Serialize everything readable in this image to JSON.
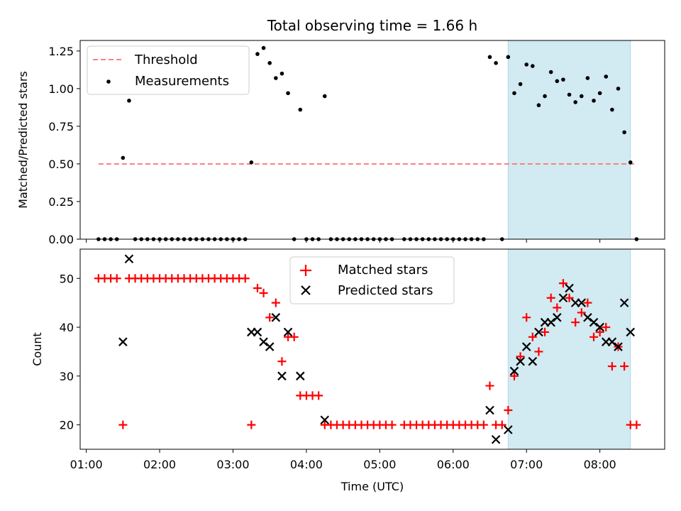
{
  "chart_data": [
    {
      "type": "scatter",
      "title": "Total observing time = 1.66 h",
      "xlabel": "",
      "ylabel": "Matched/Predicted stars",
      "ylim": [
        0,
        1.32
      ],
      "yticks": [
        0,
        0.25,
        0.5,
        0.75,
        1.0,
        1.25
      ],
      "ytick_labels": [
        "0.00",
        "0.25",
        "0.50",
        "0.75",
        "1.00",
        "1.25"
      ],
      "xlim": [
        "00:55",
        "08:53"
      ],
      "shaded_span": [
        "06:45",
        "08:25"
      ],
      "shaded_color": "#add8e6",
      "legend_position": "upper left",
      "threshold": {
        "name": "Threshold",
        "value": 0.5,
        "x_range": [
          "01:10",
          "08:30"
        ],
        "color": "#ff7f7f",
        "style": "dashed"
      },
      "series": [
        {
          "name": "Measurements",
          "marker": "dot",
          "color": "#000000",
          "points": [
            [
              "01:10",
              0
            ],
            [
              "01:15",
              0
            ],
            [
              "01:20",
              0
            ],
            [
              "01:25",
              0
            ],
            [
              "01:30",
              0.54
            ],
            [
              "01:35",
              0.92
            ],
            [
              "01:40",
              0
            ],
            [
              "01:45",
              0
            ],
            [
              "01:50",
              0
            ],
            [
              "01:55",
              0
            ],
            [
              "02:00",
              0
            ],
            [
              "02:05",
              0
            ],
            [
              "02:10",
              0
            ],
            [
              "02:15",
              0
            ],
            [
              "02:20",
              0
            ],
            [
              "02:25",
              0
            ],
            [
              "02:30",
              0
            ],
            [
              "02:35",
              0
            ],
            [
              "02:40",
              0
            ],
            [
              "02:45",
              0
            ],
            [
              "02:50",
              0
            ],
            [
              "02:55",
              0
            ],
            [
              "03:00",
              0
            ],
            [
              "03:05",
              0
            ],
            [
              "03:10",
              0
            ],
            [
              "03:15",
              0.51
            ],
            [
              "03:20",
              1.23
            ],
            [
              "03:25",
              1.27
            ],
            [
              "03:30",
              1.17
            ],
            [
              "03:35",
              1.07
            ],
            [
              "03:40",
              1.1
            ],
            [
              "03:45",
              0.97
            ],
            [
              "03:50",
              0
            ],
            [
              "03:55",
              0.86
            ],
            [
              "04:00",
              0
            ],
            [
              "04:05",
              0
            ],
            [
              "04:10",
              0
            ],
            [
              "04:15",
              0.95
            ],
            [
              "04:20",
              0
            ],
            [
              "04:25",
              0
            ],
            [
              "04:30",
              0
            ],
            [
              "04:35",
              0
            ],
            [
              "04:40",
              0
            ],
            [
              "04:45",
              0
            ],
            [
              "04:50",
              0
            ],
            [
              "04:55",
              0
            ],
            [
              "05:00",
              0
            ],
            [
              "05:05",
              0
            ],
            [
              "05:10",
              0
            ],
            [
              "05:20",
              0
            ],
            [
              "05:25",
              0
            ],
            [
              "05:30",
              0
            ],
            [
              "05:35",
              0
            ],
            [
              "05:40",
              0
            ],
            [
              "05:45",
              0
            ],
            [
              "05:50",
              0
            ],
            [
              "05:55",
              0
            ],
            [
              "06:00",
              0
            ],
            [
              "06:05",
              0
            ],
            [
              "06:10",
              0
            ],
            [
              "06:15",
              0
            ],
            [
              "06:20",
              0
            ],
            [
              "06:25",
              0
            ],
            [
              "06:30",
              1.21
            ],
            [
              "06:35",
              1.17
            ],
            [
              "06:40",
              0
            ],
            [
              "06:45",
              1.21
            ],
            [
              "06:50",
              0.97
            ],
            [
              "06:55",
              1.03
            ],
            [
              "07:00",
              1.16
            ],
            [
              "07:05",
              1.15
            ],
            [
              "07:10",
              0.89
            ],
            [
              "07:15",
              0.95
            ],
            [
              "07:20",
              1.11
            ],
            [
              "07:25",
              1.05
            ],
            [
              "07:30",
              1.06
            ],
            [
              "07:35",
              0.96
            ],
            [
              "07:40",
              0.91
            ],
            [
              "07:45",
              0.95
            ],
            [
              "07:50",
              1.07
            ],
            [
              "07:55",
              0.92
            ],
            [
              "08:00",
              0.97
            ],
            [
              "08:05",
              1.08
            ],
            [
              "08:10",
              0.86
            ],
            [
              "08:15",
              1.0
            ],
            [
              "08:20",
              0.71
            ],
            [
              "08:25",
              0.51
            ],
            [
              "08:30",
              0
            ]
          ]
        }
      ]
    },
    {
      "type": "scatter",
      "title": "",
      "xlabel": "Time (UTC)",
      "ylabel": "Count",
      "ylim": [
        15,
        56
      ],
      "yticks": [
        20,
        30,
        40,
        50
      ],
      "ytick_labels": [
        "20",
        "30",
        "40",
        "50"
      ],
      "xlim": [
        "00:55",
        "08:53"
      ],
      "xticks": [
        "01:00",
        "02:00",
        "03:00",
        "04:00",
        "05:00",
        "06:00",
        "07:00",
        "08:00"
      ],
      "shaded_span": [
        "06:45",
        "08:25"
      ],
      "shaded_color": "#add8e6",
      "legend_position": "upper center",
      "series": [
        {
          "name": "Matched stars",
          "marker": "plus",
          "color": "#ff0000",
          "points": [
            [
              "01:10",
              50
            ],
            [
              "01:15",
              50
            ],
            [
              "01:20",
              50
            ],
            [
              "01:25",
              50
            ],
            [
              "01:30",
              20
            ],
            [
              "01:35",
              50
            ],
            [
              "01:40",
              50
            ],
            [
              "01:45",
              50
            ],
            [
              "01:50",
              50
            ],
            [
              "01:55",
              50
            ],
            [
              "02:00",
              50
            ],
            [
              "02:05",
              50
            ],
            [
              "02:10",
              50
            ],
            [
              "02:15",
              50
            ],
            [
              "02:20",
              50
            ],
            [
              "02:25",
              50
            ],
            [
              "02:30",
              50
            ],
            [
              "02:35",
              50
            ],
            [
              "02:40",
              50
            ],
            [
              "02:45",
              50
            ],
            [
              "02:50",
              50
            ],
            [
              "02:55",
              50
            ],
            [
              "03:00",
              50
            ],
            [
              "03:05",
              50
            ],
            [
              "03:10",
              50
            ],
            [
              "03:15",
              20
            ],
            [
              "03:20",
              48
            ],
            [
              "03:25",
              47
            ],
            [
              "03:30",
              42
            ],
            [
              "03:35",
              45
            ],
            [
              "03:40",
              33
            ],
            [
              "03:45",
              38
            ],
            [
              "03:50",
              38
            ],
            [
              "03:55",
              26
            ],
            [
              "04:00",
              26
            ],
            [
              "04:05",
              26
            ],
            [
              "04:10",
              26
            ],
            [
              "04:15",
              20
            ],
            [
              "04:20",
              20
            ],
            [
              "04:25",
              20
            ],
            [
              "04:30",
              20
            ],
            [
              "04:35",
              20
            ],
            [
              "04:40",
              20
            ],
            [
              "04:45",
              20
            ],
            [
              "04:50",
              20
            ],
            [
              "04:55",
              20
            ],
            [
              "05:00",
              20
            ],
            [
              "05:05",
              20
            ],
            [
              "05:10",
              20
            ],
            [
              "05:20",
              20
            ],
            [
              "05:25",
              20
            ],
            [
              "05:30",
              20
            ],
            [
              "05:35",
              20
            ],
            [
              "05:40",
              20
            ],
            [
              "05:45",
              20
            ],
            [
              "05:50",
              20
            ],
            [
              "05:55",
              20
            ],
            [
              "06:00",
              20
            ],
            [
              "06:05",
              20
            ],
            [
              "06:10",
              20
            ],
            [
              "06:15",
              20
            ],
            [
              "06:20",
              20
            ],
            [
              "06:25",
              20
            ],
            [
              "06:30",
              28
            ],
            [
              "06:35",
              20
            ],
            [
              "06:40",
              20
            ],
            [
              "06:45",
              23
            ],
            [
              "06:50",
              30
            ],
            [
              "06:55",
              34
            ],
            [
              "07:00",
              42
            ],
            [
              "07:05",
              38
            ],
            [
              "07:10",
              35
            ],
            [
              "07:15",
              39
            ],
            [
              "07:20",
              46
            ],
            [
              "07:25",
              44
            ],
            [
              "07:30",
              49
            ],
            [
              "07:35",
              46
            ],
            [
              "07:40",
              41
            ],
            [
              "07:45",
              43
            ],
            [
              "07:50",
              45
            ],
            [
              "07:55",
              38
            ],
            [
              "08:00",
              39
            ],
            [
              "08:05",
              40
            ],
            [
              "08:10",
              32
            ],
            [
              "08:15",
              36
            ],
            [
              "08:20",
              32
            ],
            [
              "08:25",
              20
            ],
            [
              "08:30",
              20
            ]
          ]
        },
        {
          "name": "Predicted stars",
          "marker": "x",
          "color": "#000000",
          "points": [
            [
              "01:30",
              37
            ],
            [
              "01:35",
              54
            ],
            [
              "03:15",
              39
            ],
            [
              "03:20",
              39
            ],
            [
              "03:25",
              37
            ],
            [
              "03:30",
              36
            ],
            [
              "03:35",
              42
            ],
            [
              "03:40",
              30
            ],
            [
              "03:45",
              39
            ],
            [
              "03:55",
              30
            ],
            [
              "04:15",
              21
            ],
            [
              "06:30",
              23
            ],
            [
              "06:35",
              17
            ],
            [
              "06:45",
              19
            ],
            [
              "06:50",
              31
            ],
            [
              "06:55",
              33
            ],
            [
              "07:00",
              36
            ],
            [
              "07:05",
              33
            ],
            [
              "07:10",
              39
            ],
            [
              "07:15",
              41
            ],
            [
              "07:20",
              41
            ],
            [
              "07:25",
              42
            ],
            [
              "07:30",
              46
            ],
            [
              "07:35",
              48
            ],
            [
              "07:40",
              45
            ],
            [
              "07:45",
              45
            ],
            [
              "07:50",
              42
            ],
            [
              "07:55",
              41
            ],
            [
              "08:00",
              40
            ],
            [
              "08:05",
              37
            ],
            [
              "08:10",
              37
            ],
            [
              "08:15",
              36
            ],
            [
              "08:20",
              45
            ],
            [
              "08:25",
              39
            ]
          ]
        }
      ]
    }
  ]
}
